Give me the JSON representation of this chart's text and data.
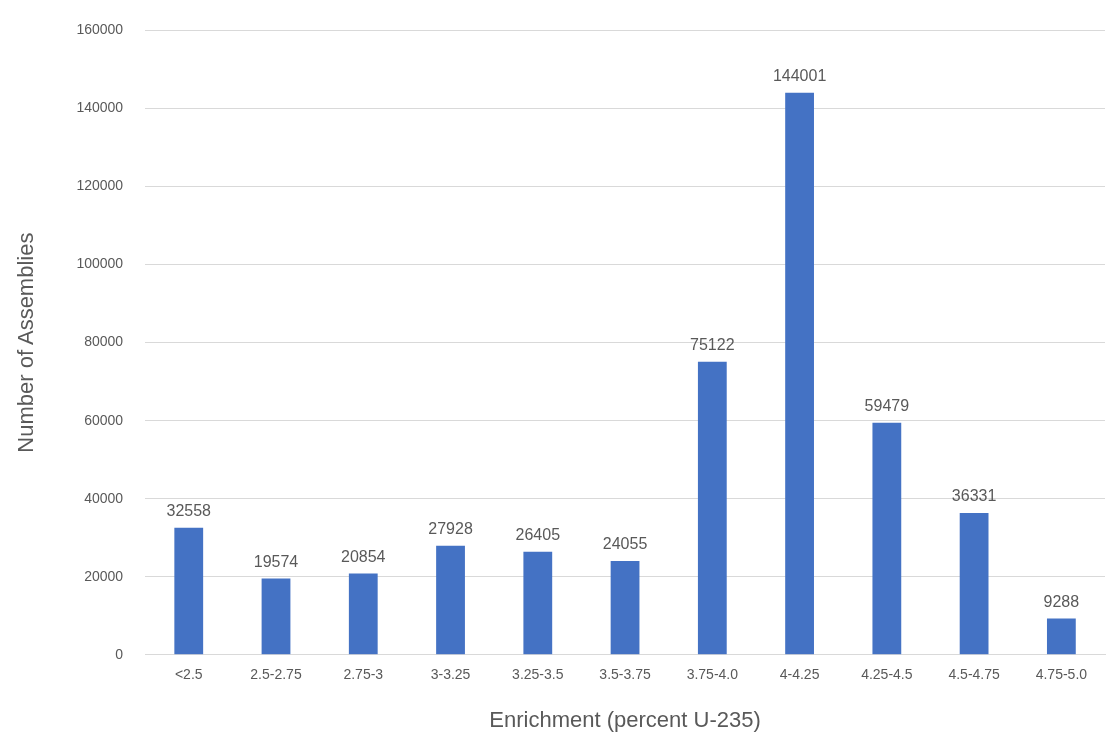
{
  "chart_data": {
    "type": "bar",
    "xlabel": "Enrichment (percent U-235)",
    "ylabel": "Number of Assemblies",
    "categories": [
      "<2.5",
      "2.5-2.75",
      "2.75-3",
      "3-3.25",
      "3.25-3.5",
      "3.5-3.75",
      "3.75-4.0",
      "4-4.25",
      "4.25-4.5",
      "4.5-4.75",
      "4.75-5.0"
    ],
    "values": [
      32558,
      19574,
      20854,
      27928,
      26405,
      24055,
      75122,
      144001,
      59479,
      36331,
      9288
    ],
    "color": "#4472c4",
    "ylim": [
      0,
      160000
    ],
    "yticks": [
      0,
      20000,
      40000,
      60000,
      80000,
      100000,
      120000,
      140000,
      160000
    ],
    "grid": "y",
    "legend": false,
    "data_labels": true
  }
}
